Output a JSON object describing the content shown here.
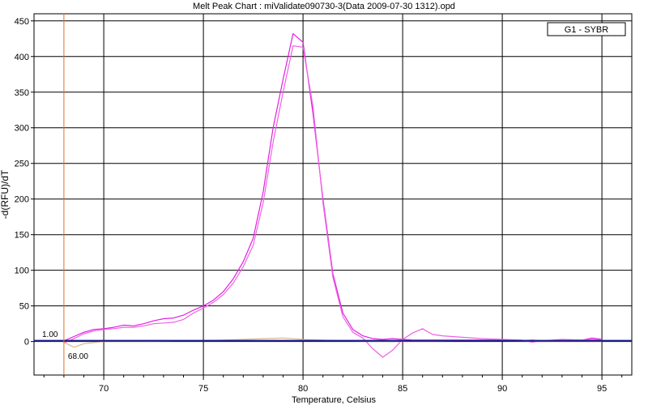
{
  "chart_data": {
    "type": "line",
    "title": "Melt Peak Chart : miValidate090730-3(Data 2009-07-30 1312).opd",
    "xlabel": "Temperature, Celsius",
    "ylabel": "-d(RFU)/dT",
    "xlim": [
      66.5,
      96.5
    ],
    "ylim": [
      -47,
      460
    ],
    "x_ticks": [
      70,
      75,
      80,
      85,
      90,
      95
    ],
    "y_ticks": [
      0,
      50,
      100,
      150,
      200,
      250,
      300,
      350,
      400,
      450
    ],
    "grid": true,
    "legend": {
      "position": "top-right",
      "entries": [
        "G1 - SYBR"
      ]
    },
    "threshold": {
      "value": 1.0,
      "label": "1.00"
    },
    "marker": {
      "x": 68.0,
      "label": "68.00"
    },
    "series": [
      {
        "color": "#e020e0",
        "x": [
          68.0,
          68.5,
          69.0,
          69.5,
          70.0,
          70.5,
          71.0,
          71.5,
          72.0,
          72.5,
          73.0,
          73.5,
          74.0,
          74.5,
          75.0,
          75.5,
          76.0,
          76.5,
          77.0,
          77.5,
          78.0,
          78.5,
          79.0,
          79.5,
          80.0,
          80.5,
          81.0,
          81.5,
          82.0,
          82.5,
          83.0,
          83.5,
          84.0,
          84.5,
          85.0,
          85.5,
          86.0,
          86.5,
          87.0,
          88.0,
          89.0,
          90.0,
          91.0,
          91.5,
          92.0,
          93.0,
          94.0,
          94.5,
          95.0
        ],
        "values": [
          1,
          7,
          13,
          17,
          18,
          20,
          23,
          22,
          25,
          29,
          32,
          33,
          37,
          44,
          50,
          58,
          70,
          88,
          112,
          145,
          210,
          300,
          368,
          432,
          420,
          320,
          200,
          95,
          40,
          17,
          8,
          4,
          3,
          4,
          3,
          2,
          2,
          2,
          2,
          2,
          2,
          2,
          1,
          2,
          1,
          1,
          2,
          5,
          3
        ]
      },
      {
        "color": "#f060e8",
        "x": [
          68.0,
          68.5,
          69.0,
          69.5,
          70.0,
          70.5,
          71.0,
          71.5,
          72.0,
          72.5,
          73.0,
          73.5,
          74.0,
          74.5,
          75.0,
          75.5,
          76.0,
          76.5,
          77.0,
          77.5,
          78.0,
          78.5,
          79.0,
          79.5,
          80.0,
          80.5,
          81.0,
          81.5,
          82.0,
          82.5,
          83.0,
          83.5,
          84.0,
          84.5,
          85.0,
          85.5,
          86.0,
          86.5,
          87.0,
          88.0,
          89.0,
          90.0,
          91.0,
          91.5,
          92.0,
          93.0,
          94.0,
          94.5,
          95.0
        ],
        "values": [
          -2,
          4,
          11,
          15,
          17,
          18,
          20,
          20,
          22,
          25,
          26,
          27,
          31,
          40,
          47,
          55,
          66,
          82,
          105,
          135,
          195,
          280,
          350,
          415,
          413,
          330,
          195,
          90,
          35,
          13,
          5,
          -10,
          -22,
          -12,
          3,
          12,
          18,
          10,
          8,
          6,
          4,
          3,
          2,
          -1,
          1,
          3,
          2,
          3,
          2
        ]
      },
      {
        "color": "#d8b890",
        "x": [
          68.0,
          68.5,
          69.0,
          70.0,
          72.0,
          74.0,
          76.0,
          78.0,
          79.0,
          80.0,
          82.0,
          84.0,
          86.0,
          88.0,
          90.0,
          92.0,
          94.0,
          95.0
        ],
        "values": [
          -1,
          -8,
          -3,
          0,
          0,
          1,
          2,
          4,
          5,
          3,
          1,
          0,
          0,
          1,
          1,
          0,
          0,
          0
        ]
      }
    ]
  }
}
